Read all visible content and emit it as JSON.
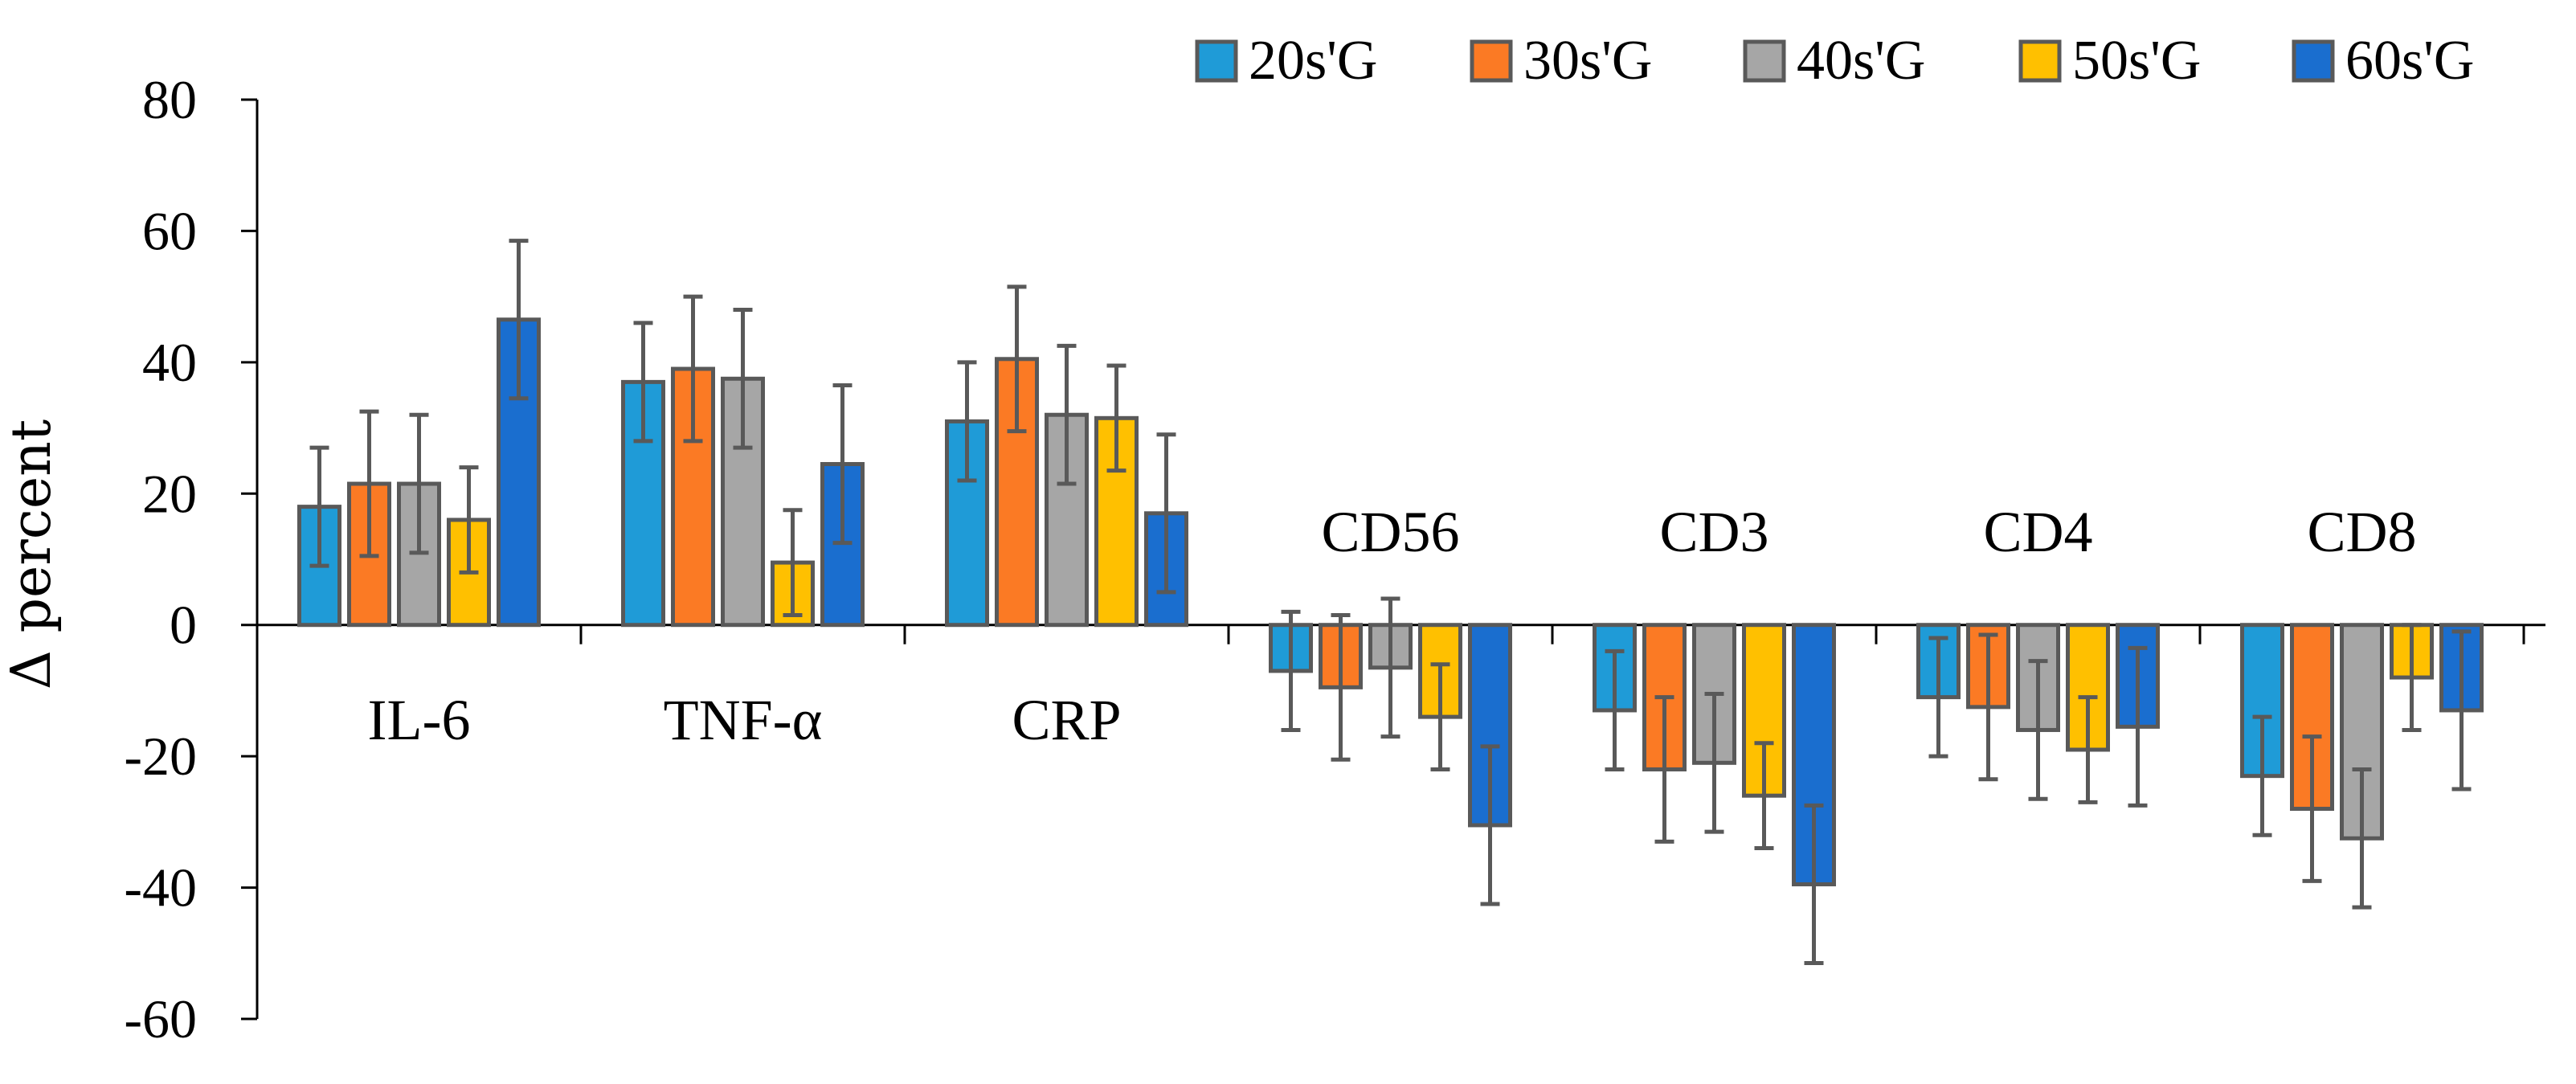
{
  "chart_data": {
    "type": "bar",
    "title": "",
    "xlabel": "",
    "ylabel": "Δ percent",
    "ylim": [
      -60,
      80
    ],
    "yticks": [
      80,
      60,
      40,
      20,
      0,
      -20,
      -40,
      -60
    ],
    "ytick_labels": [
      "80",
      "60",
      "40",
      "20",
      "0",
      "-20",
      "-40",
      "-60"
    ],
    "grid": false,
    "legend_position": "top-right",
    "categories": [
      "IL-6",
      "TNF-α",
      "CRP",
      "CD56",
      "CD3",
      "CD4",
      "CD8"
    ],
    "series": [
      {
        "name": "20s'G",
        "color": "#1f9bd7",
        "values": [
          18,
          37,
          31,
          -7,
          -13,
          -11,
          -23
        ],
        "errors": [
          9,
          9,
          9,
          9,
          9,
          9,
          9
        ]
      },
      {
        "name": "30s'G",
        "color": "#fb7a24",
        "values": [
          21.5,
          39,
          40.5,
          -9.5,
          -22,
          -12.5,
          -28
        ],
        "errors": [
          11,
          11,
          11,
          11,
          11,
          11,
          11
        ]
      },
      {
        "name": "40s'G",
        "color": "#a6a6a6",
        "values": [
          21.5,
          37.5,
          32,
          -6.5,
          -21,
          -16,
          -32.5
        ],
        "errors": [
          10.5,
          10.5,
          10.5,
          10.5,
          10.5,
          10.5,
          10.5
        ]
      },
      {
        "name": "50s'G",
        "color": "#ffc000",
        "values": [
          16,
          9.5,
          31.5,
          -14,
          -26,
          -19,
          -8
        ],
        "errors": [
          8,
          8,
          8,
          8,
          8,
          8,
          8
        ]
      },
      {
        "name": "60s'G",
        "color": "#1a6ecf",
        "values": [
          46.5,
          24.5,
          17,
          -30.5,
          -39.5,
          -15.5,
          -13
        ],
        "errors": [
          12,
          12,
          12,
          12,
          12,
          12,
          12
        ]
      }
    ]
  }
}
